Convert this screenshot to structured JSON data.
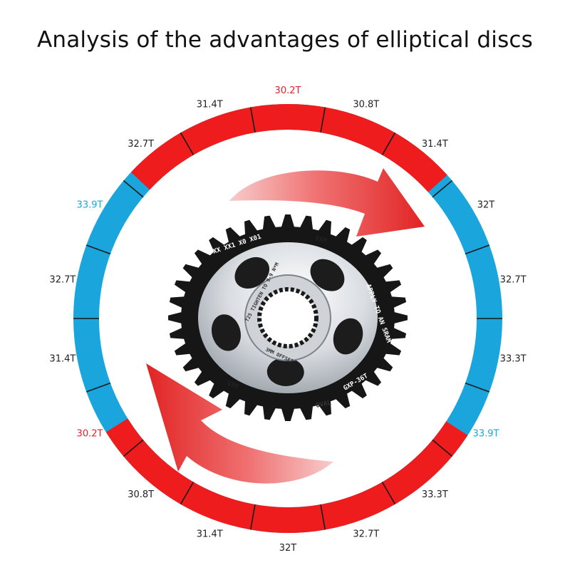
{
  "title": "Analysis of the advantages of elliptical discs",
  "colors": {
    "blue": "#1aa6dc",
    "red": "#ee1c1c",
    "label_default": "#222222",
    "label_red": "#e8202a",
    "label_blue": "#1aa6dc"
  },
  "ring_labels": [
    {
      "text": "30.2T",
      "color": "red"
    },
    {
      "text": "30.8T",
      "color": "default"
    },
    {
      "text": "31.4T",
      "color": "default"
    },
    {
      "text": "32T",
      "color": "default"
    },
    {
      "text": "32.7T",
      "color": "default"
    },
    {
      "text": "33.3T",
      "color": "default"
    },
    {
      "text": "33.9T",
      "color": "blue"
    },
    {
      "text": "33.3T",
      "color": "default"
    },
    {
      "text": "32.7T",
      "color": "default"
    },
    {
      "text": "32T",
      "color": "default"
    },
    {
      "text": "31.4T",
      "color": "default"
    },
    {
      "text": "30.8T",
      "color": "default"
    },
    {
      "text": "30.2T",
      "color": "red"
    },
    {
      "text": "31.4T",
      "color": "default"
    },
    {
      "text": "32.7T",
      "color": "default"
    },
    {
      "text": "33.9T",
      "color": "blue"
    },
    {
      "text": "32.7T",
      "color": "default"
    },
    {
      "text": "31.4T",
      "color": "default"
    }
  ],
  "chainring": {
    "outer_text": "XX XX1 X0 X01",
    "brand": "VXM",
    "model": "GXP-36T",
    "offset": "3MM OFFSET",
    "tighten": "T25 TIGHTEN TO 9-9 N*M",
    "apply": "APPLY TO AN SRAM",
    "oval": "OVAL"
  }
}
